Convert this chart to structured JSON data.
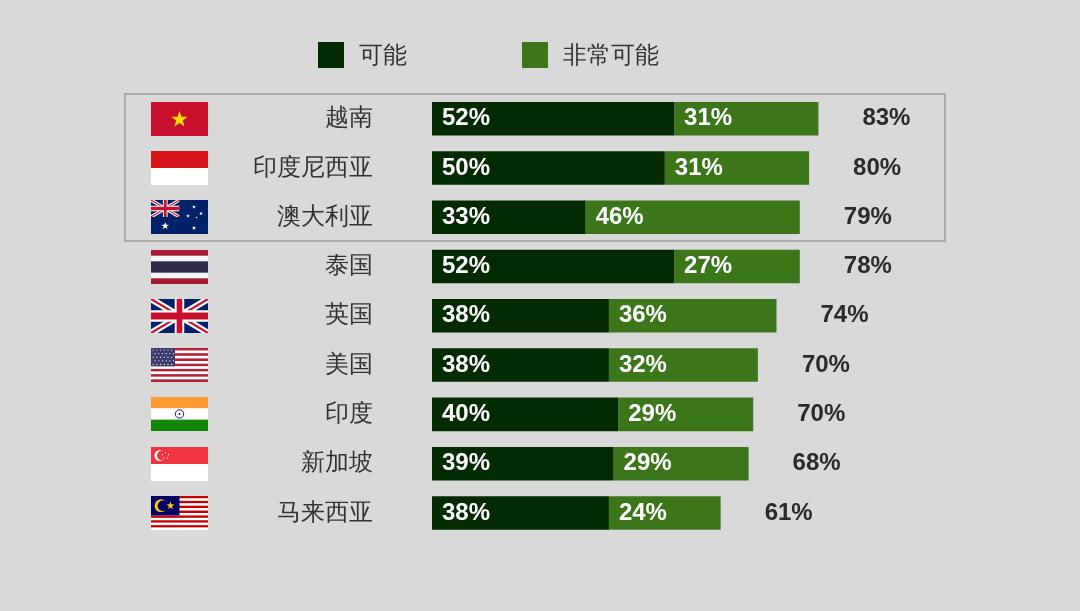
{
  "chart_data": {
    "type": "bar",
    "orientation": "horizontal",
    "stacked": true,
    "categories": [
      "越南",
      "印度尼西亚",
      "澳大利亚",
      "泰国",
      "英国",
      "美国",
      "印度",
      "新加坡",
      "马来西亚"
    ],
    "series": [
      {
        "name": "可能",
        "color": "#032a00",
        "values": [
          52,
          50,
          33,
          52,
          38,
          38,
          40,
          39,
          38
        ],
        "value_labels": [
          "52%",
          "50%",
          "33%",
          "52%",
          "38%",
          "38%",
          "40%",
          "39%",
          "38%"
        ]
      },
      {
        "name": "非常可能",
        "color": "#3b761a",
        "values": [
          31,
          31,
          46,
          27,
          36,
          32,
          29,
          29,
          24
        ],
        "value_labels": [
          "31%",
          "31%",
          "46%",
          "27%",
          "36%",
          "32%",
          "29%",
          "29%",
          "24%"
        ]
      }
    ],
    "totals": [
      "83%",
      "80%",
      "79%",
      "78%",
      "74%",
      "70%",
      "70%",
      "68%",
      "61%"
    ],
    "legend": "top",
    "tick_labels": "y"
  }
}
